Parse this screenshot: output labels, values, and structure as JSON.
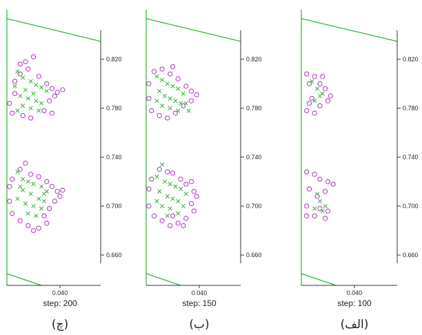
{
  "chart_data": [
    {
      "type": "scatter",
      "panel_label": "(چ)",
      "step_label": "step: 200",
      "x_ticks": [
        "0.040"
      ],
      "y_ticks": [
        "0.820",
        "0.780",
        "0.740",
        "0.700",
        "0.660"
      ],
      "series": [
        {
          "marker": "circle",
          "color": "#b030c0",
          "points": [
            [
              0.014,
              0.818
            ],
            [
              0.02,
              0.822
            ],
            [
              0.016,
              0.812
            ],
            [
              0.01,
              0.808
            ],
            [
              0.024,
              0.806
            ],
            [
              0.006,
              0.802
            ],
            [
              0.03,
              0.8
            ],
            [
              0.034,
              0.796
            ],
            [
              0.038,
              0.793
            ],
            [
              0.042,
              0.795
            ],
            [
              0.036,
              0.79
            ],
            [
              0.032,
              0.786
            ],
            [
              0.002,
              0.784
            ],
            [
              0.004,
              0.776
            ],
            [
              0.012,
              0.774
            ],
            [
              0.018,
              0.772
            ],
            [
              0.028,
              0.778
            ],
            [
              0.034,
              0.776
            ],
            [
              0.006,
              0.792
            ],
            [
              0.01,
              0.816
            ],
            [
              0.014,
              0.735
            ],
            [
              0.01,
              0.73
            ],
            [
              0.018,
              0.726
            ],
            [
              0.004,
              0.722
            ],
            [
              0.024,
              0.724
            ],
            [
              0.002,
              0.716
            ],
            [
              0.03,
              0.72
            ],
            [
              0.034,
              0.716
            ],
            [
              0.038,
              0.712
            ],
            [
              0.04,
              0.708
            ],
            [
              0.042,
              0.713
            ],
            [
              0.036,
              0.704
            ],
            [
              0.032,
              0.698
            ],
            [
              0.028,
              0.692
            ],
            [
              0.03,
              0.686
            ],
            [
              0.024,
              0.682
            ],
            [
              0.016,
              0.684
            ],
            [
              0.01,
              0.688
            ],
            [
              0.004,
              0.694
            ],
            [
              0.02,
              0.68
            ],
            [
              0.002,
              0.704
            ]
          ]
        },
        {
          "marker": "x",
          "color": "#30b030",
          "points": [
            [
              0.008,
              0.81
            ],
            [
              0.012,
              0.805
            ],
            [
              0.018,
              0.802
            ],
            [
              0.022,
              0.799
            ],
            [
              0.026,
              0.797
            ],
            [
              0.03,
              0.794
            ],
            [
              0.014,
              0.795
            ],
            [
              0.01,
              0.79
            ],
            [
              0.016,
              0.788
            ],
            [
              0.022,
              0.786
            ],
            [
              0.026,
              0.784
            ],
            [
              0.012,
              0.782
            ],
            [
              0.018,
              0.78
            ],
            [
              0.024,
              0.778
            ],
            [
              0.008,
              0.778
            ],
            [
              0.006,
              0.798
            ],
            [
              0.02,
              0.792
            ],
            [
              0.008,
              0.728
            ],
            [
              0.012,
              0.722
            ],
            [
              0.016,
              0.72
            ],
            [
              0.02,
              0.718
            ],
            [
              0.026,
              0.716
            ],
            [
              0.03,
              0.712
            ],
            [
              0.012,
              0.713
            ],
            [
              0.018,
              0.71
            ],
            [
              0.024,
              0.706
            ],
            [
              0.028,
              0.704
            ],
            [
              0.014,
              0.702
            ],
            [
              0.02,
              0.7
            ],
            [
              0.026,
              0.698
            ],
            [
              0.008,
              0.706
            ],
            [
              0.016,
              0.694
            ],
            [
              0.022,
              0.692
            ],
            [
              0.028,
              0.71
            ],
            [
              0.01,
              0.716
            ]
          ]
        }
      ]
    },
    {
      "type": "scatter",
      "panel_label": "(ب)",
      "step_label": "step: 150",
      "x_ticks": [
        "0.040"
      ],
      "y_ticks": [
        "0.820",
        "0.780",
        "0.740",
        "0.700",
        "0.660"
      ],
      "series": [
        {
          "marker": "circle",
          "color": "#b030c0",
          "points": [
            [
              0.006,
              0.81
            ],
            [
              0.012,
              0.812
            ],
            [
              0.018,
              0.808
            ],
            [
              0.024,
              0.804
            ],
            [
              0.002,
              0.8
            ],
            [
              0.03,
              0.798
            ],
            [
              0.034,
              0.794
            ],
            [
              0.038,
              0.791
            ],
            [
              0.034,
              0.786
            ],
            [
              0.028,
              0.782
            ],
            [
              0.002,
              0.788
            ],
            [
              0.004,
              0.778
            ],
            [
              0.01,
              0.774
            ],
            [
              0.016,
              0.772
            ],
            [
              0.022,
              0.776
            ],
            [
              0.02,
              0.814
            ],
            [
              0.01,
              0.73
            ],
            [
              0.016,
              0.728
            ],
            [
              0.02,
              0.727
            ],
            [
              0.004,
              0.722
            ],
            [
              0.026,
              0.722
            ],
            [
              0.03,
              0.718
            ],
            [
              0.034,
              0.72
            ],
            [
              0.002,
              0.714
            ],
            [
              0.036,
              0.712
            ],
            [
              0.038,
              0.708
            ],
            [
              0.034,
              0.702
            ],
            [
              0.036,
              0.696
            ],
            [
              0.03,
              0.69
            ],
            [
              0.024,
              0.686
            ],
            [
              0.018,
              0.684
            ],
            [
              0.012,
              0.688
            ],
            [
              0.006,
              0.692
            ],
            [
              0.002,
              0.7
            ],
            [
              0.028,
              0.684
            ],
            [
              0.02,
              0.692
            ]
          ]
        },
        {
          "marker": "x",
          "color": "#30b030",
          "points": [
            [
              0.008,
              0.806
            ],
            [
              0.012,
              0.803
            ],
            [
              0.016,
              0.8
            ],
            [
              0.02,
              0.798
            ],
            [
              0.024,
              0.796
            ],
            [
              0.028,
              0.792
            ],
            [
              0.01,
              0.794
            ],
            [
              0.014,
              0.79
            ],
            [
              0.018,
              0.788
            ],
            [
              0.022,
              0.786
            ],
            [
              0.026,
              0.784
            ],
            [
              0.03,
              0.784
            ],
            [
              0.012,
              0.782
            ],
            [
              0.018,
              0.78
            ],
            [
              0.024,
              0.778
            ],
            [
              0.008,
              0.786
            ],
            [
              0.032,
              0.778
            ],
            [
              0.012,
              0.734
            ],
            [
              0.008,
              0.724
            ],
            [
              0.014,
              0.72
            ],
            [
              0.018,
              0.718
            ],
            [
              0.022,
              0.716
            ],
            [
              0.026,
              0.714
            ],
            [
              0.03,
              0.71
            ],
            [
              0.01,
              0.712
            ],
            [
              0.016,
              0.708
            ],
            [
              0.02,
              0.706
            ],
            [
              0.024,
              0.704
            ],
            [
              0.028,
              0.7
            ],
            [
              0.012,
              0.7
            ],
            [
              0.018,
              0.698
            ],
            [
              0.024,
              0.694
            ],
            [
              0.008,
              0.704
            ],
            [
              0.016,
              0.692
            ]
          ]
        }
      ]
    },
    {
      "type": "scatter",
      "panel_label": "(الف)",
      "step_label": "step: 100",
      "x_ticks": [
        "0.040"
      ],
      "y_ticks": [
        "0.820",
        "0.780",
        "0.740",
        "0.700",
        "0.660"
      ],
      "series": [
        {
          "marker": "circle",
          "color": "#b030c0",
          "points": [
            [
              0.004,
              0.808
            ],
            [
              0.01,
              0.806
            ],
            [
              0.016,
              0.806
            ],
            [
              0.006,
              0.8
            ],
            [
              0.014,
              0.8
            ],
            [
              0.018,
              0.796
            ],
            [
              0.022,
              0.79
            ],
            [
              0.02,
              0.786
            ],
            [
              0.014,
              0.782
            ],
            [
              0.008,
              0.788
            ],
            [
              0.004,
              0.778
            ],
            [
              0.01,
              0.776
            ],
            [
              0.006,
              0.784
            ],
            [
              0.004,
              0.728
            ],
            [
              0.01,
              0.726
            ],
            [
              0.014,
              0.722
            ],
            [
              0.02,
              0.72
            ],
            [
              0.024,
              0.718
            ],
            [
              0.006,
              0.714
            ],
            [
              0.018,
              0.712
            ],
            [
              0.004,
              0.7
            ],
            [
              0.014,
              0.698
            ],
            [
              0.02,
              0.696
            ],
            [
              0.018,
              0.69
            ],
            [
              0.01,
              0.692
            ],
            [
              0.004,
              0.692
            ],
            [
              0.012,
              0.708
            ]
          ]
        },
        {
          "marker": "x",
          "color": "#30b030",
          "points": [
            [
              0.008,
              0.802
            ],
            [
              0.012,
              0.796
            ],
            [
              0.014,
              0.79
            ],
            [
              0.01,
              0.786
            ],
            [
              0.016,
              0.792
            ],
            [
              0.012,
              0.71
            ],
            [
              0.014,
              0.704
            ],
            [
              0.01,
              0.698
            ],
            [
              0.016,
              0.696
            ],
            [
              0.018,
              0.7
            ]
          ]
        }
      ]
    }
  ]
}
